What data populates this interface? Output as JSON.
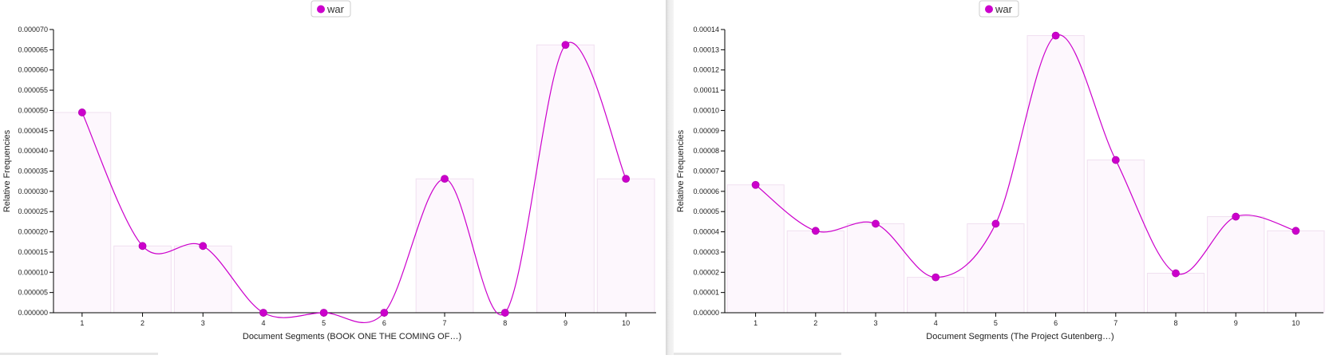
{
  "accent_color": "#cc00cc",
  "chart_data": [
    {
      "type": "bar",
      "legend": [
        "war"
      ],
      "legend_position": "top-center",
      "xlabel": "Document Segments (BOOK ONE THE COMING OF…)",
      "ylabel": "Relative Frequencies",
      "categories": [
        "1",
        "2",
        "3",
        "4",
        "5",
        "6",
        "7",
        "8",
        "9",
        "10"
      ],
      "series": [
        {
          "name": "war",
          "values": [
            4.95e-05,
            1.65e-05,
            1.65e-05,
            0,
            0,
            0,
            3.31e-05,
            0,
            6.62e-05,
            3.31e-05
          ]
        }
      ],
      "ylim": [
        0,
        7e-05
      ],
      "yticks": [
        "0.000000",
        "0.000005",
        "0.000010",
        "0.000015",
        "0.000020",
        "0.000025",
        "0.000030",
        "0.000035",
        "0.000040",
        "0.000045",
        "0.000050",
        "0.000055",
        "0.000060",
        "0.000065",
        "0.000070"
      ],
      "smooth_line": true,
      "grid": false
    },
    {
      "type": "bar",
      "legend": [
        "war"
      ],
      "legend_position": "top-center",
      "xlabel": "Document Segments (The Project Gutenberg…)",
      "ylabel": "Relative Frequencies",
      "categories": [
        "1",
        "2",
        "3",
        "4",
        "5",
        "6",
        "7",
        "8",
        "9",
        "10"
      ],
      "series": [
        {
          "name": "war",
          "values": [
            6.32e-05,
            4.05e-05,
            4.4e-05,
            1.75e-05,
            4.4e-05,
            0.000137,
            7.55e-05,
            1.95e-05,
            4.75e-05,
            4.05e-05
          ]
        }
      ],
      "ylim": [
        0,
        0.00014
      ],
      "yticks": [
        "0.00000",
        "0.00001",
        "0.00002",
        "0.00003",
        "0.00004",
        "0.00005",
        "0.00006",
        "0.00007",
        "0.00008",
        "0.00009",
        "0.00010",
        "0.00011",
        "0.00012",
        "0.00013",
        "0.00014"
      ],
      "smooth_line": true,
      "grid": false
    }
  ]
}
